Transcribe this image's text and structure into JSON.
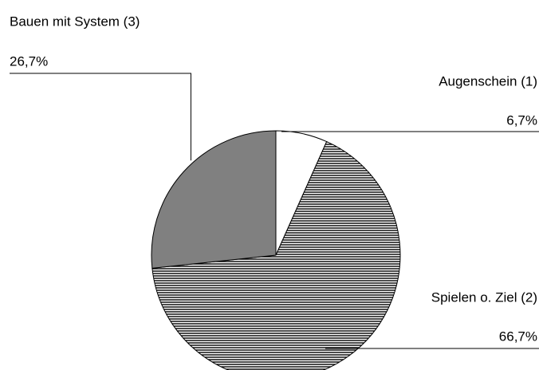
{
  "chart_data": {
    "type": "pie",
    "categories": [
      "Augenschein (1)",
      "Spielen o. Ziel (2)",
      "Bauen mit System (3)"
    ],
    "values": [
      6.7,
      66.7,
      26.7
    ],
    "value_labels": [
      "6,7%",
      "66,7%",
      "26,7%"
    ],
    "colors": [
      "#ffffff",
      "#000000",
      "#808080"
    ],
    "hatch": [
      false,
      true,
      false
    ]
  }
}
